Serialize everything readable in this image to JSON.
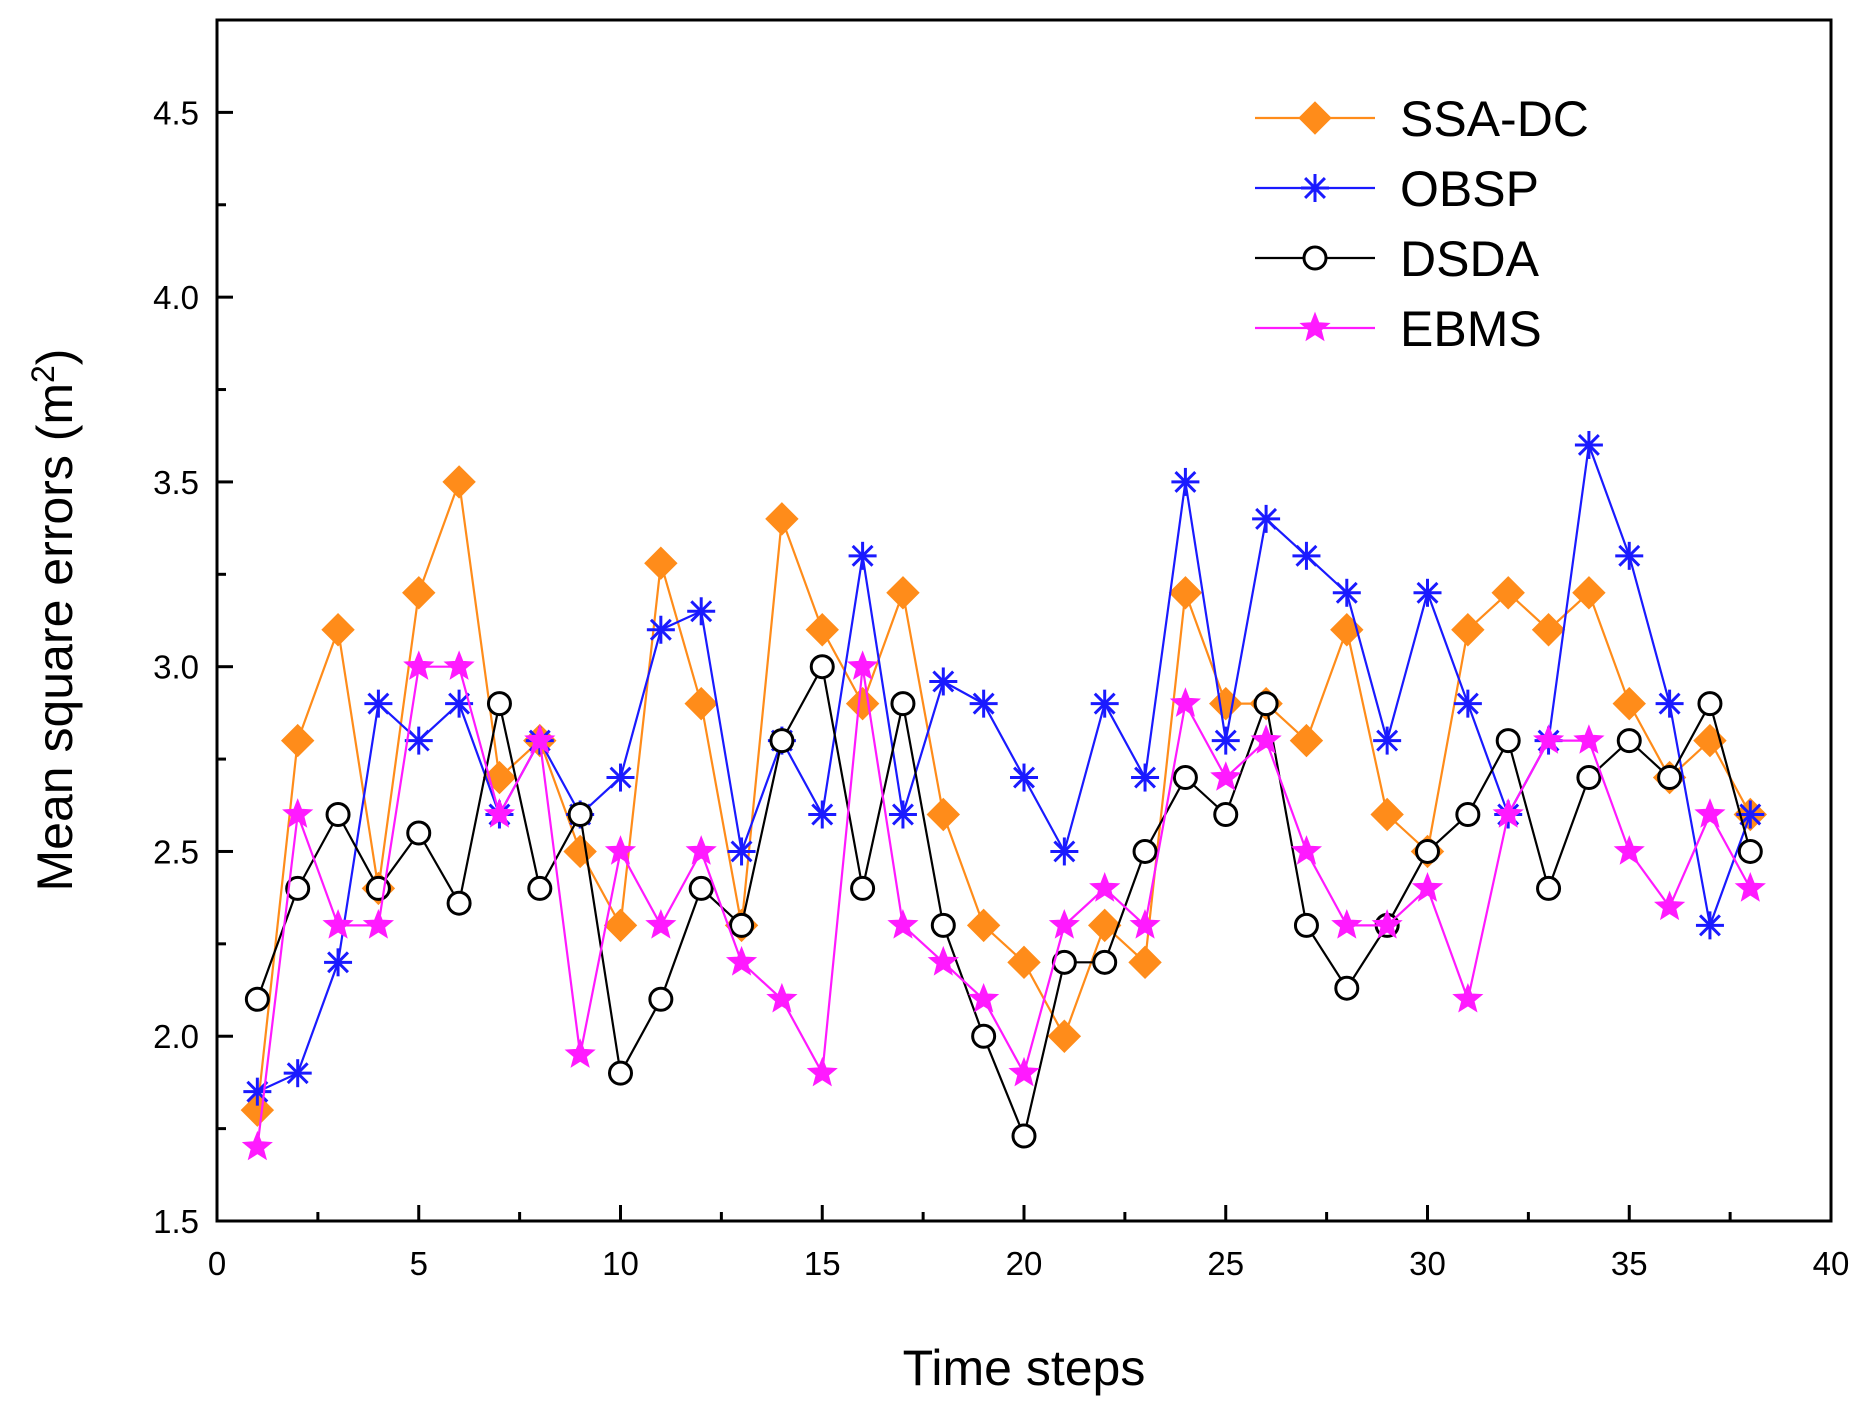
{
  "chart_data": {
    "type": "line",
    "xlabel": "Time steps",
    "ylabel_main": "Mean square errors (m",
    "ylabel_sup": "2",
    "ylabel_close": ")",
    "xlim": [
      0,
      40
    ],
    "ylim": [
      1.5,
      4.75
    ],
    "xticks": [
      0,
      5,
      10,
      15,
      20,
      25,
      30,
      35,
      40
    ],
    "xtick_labels": [
      "0",
      "5",
      "10",
      "15",
      "20",
      "25",
      "30",
      "35",
      "40"
    ],
    "yticks": [
      1.5,
      2.0,
      2.5,
      3.0,
      3.5,
      4.0,
      4.5
    ],
    "ytick_labels": [
      "1.5",
      "2.0",
      "2.5",
      "3.0",
      "3.5",
      "4.0",
      "4.5"
    ],
    "grid": false,
    "legend_position": "top-right",
    "x": [
      1,
      2,
      3,
      4,
      5,
      6,
      7,
      8,
      9,
      10,
      11,
      12,
      13,
      14,
      15,
      16,
      17,
      18,
      19,
      20,
      21,
      22,
      23,
      24,
      25,
      26,
      27,
      28,
      29,
      30,
      31,
      32,
      33,
      34,
      35,
      36,
      37,
      38
    ],
    "series": [
      {
        "name": "SSA-DC",
        "color": "#ff8c1a",
        "marker": "diamond",
        "values": [
          1.8,
          2.8,
          3.1,
          2.4,
          3.2,
          3.5,
          2.7,
          2.8,
          2.5,
          2.3,
          3.28,
          2.9,
          2.3,
          3.4,
          3.1,
          2.9,
          3.2,
          2.6,
          2.3,
          2.2,
          2.0,
          2.3,
          2.2,
          3.2,
          2.9,
          2.9,
          2.8,
          3.1,
          2.6,
          2.5,
          3.1,
          3.2,
          3.1,
          3.2,
          2.9,
          2.7,
          2.8,
          2.6
        ]
      },
      {
        "name": "OBSP",
        "color": "#1a1aff",
        "marker": "asterisk",
        "values": [
          1.85,
          1.9,
          2.2,
          2.9,
          2.8,
          2.9,
          2.6,
          2.8,
          2.6,
          2.7,
          3.1,
          3.15,
          2.5,
          2.8,
          2.6,
          3.3,
          2.6,
          2.96,
          2.9,
          2.7,
          2.5,
          2.9,
          2.7,
          3.5,
          2.8,
          3.4,
          3.3,
          3.2,
          2.8,
          3.2,
          2.9,
          2.6,
          2.8,
          3.6,
          3.3,
          2.9,
          2.3,
          2.6
        ]
      },
      {
        "name": "DSDA",
        "color": "#000000",
        "marker": "circle",
        "values": [
          2.1,
          2.4,
          2.6,
          2.4,
          2.55,
          2.36,
          2.9,
          2.4,
          2.6,
          1.9,
          2.1,
          2.4,
          2.3,
          2.8,
          3.0,
          2.4,
          2.9,
          2.3,
          2.0,
          1.73,
          2.2,
          2.2,
          2.5,
          2.7,
          2.6,
          2.9,
          2.3,
          2.13,
          2.3,
          2.5,
          2.6,
          2.8,
          2.4,
          2.7,
          2.8,
          2.7,
          2.9,
          2.5
        ]
      },
      {
        "name": "EBMS",
        "color": "#ff1aff",
        "marker": "star",
        "values": [
          1.7,
          2.6,
          2.3,
          2.3,
          3.0,
          3.0,
          2.6,
          2.8,
          1.95,
          2.5,
          2.3,
          2.5,
          2.2,
          2.1,
          1.9,
          3.0,
          2.3,
          2.2,
          2.1,
          1.9,
          2.3,
          2.4,
          2.3,
          2.9,
          2.7,
          2.8,
          2.5,
          2.3,
          2.3,
          2.4,
          2.1,
          2.6,
          2.8,
          2.8,
          2.5,
          2.35,
          2.6,
          2.4
        ]
      }
    ]
  }
}
